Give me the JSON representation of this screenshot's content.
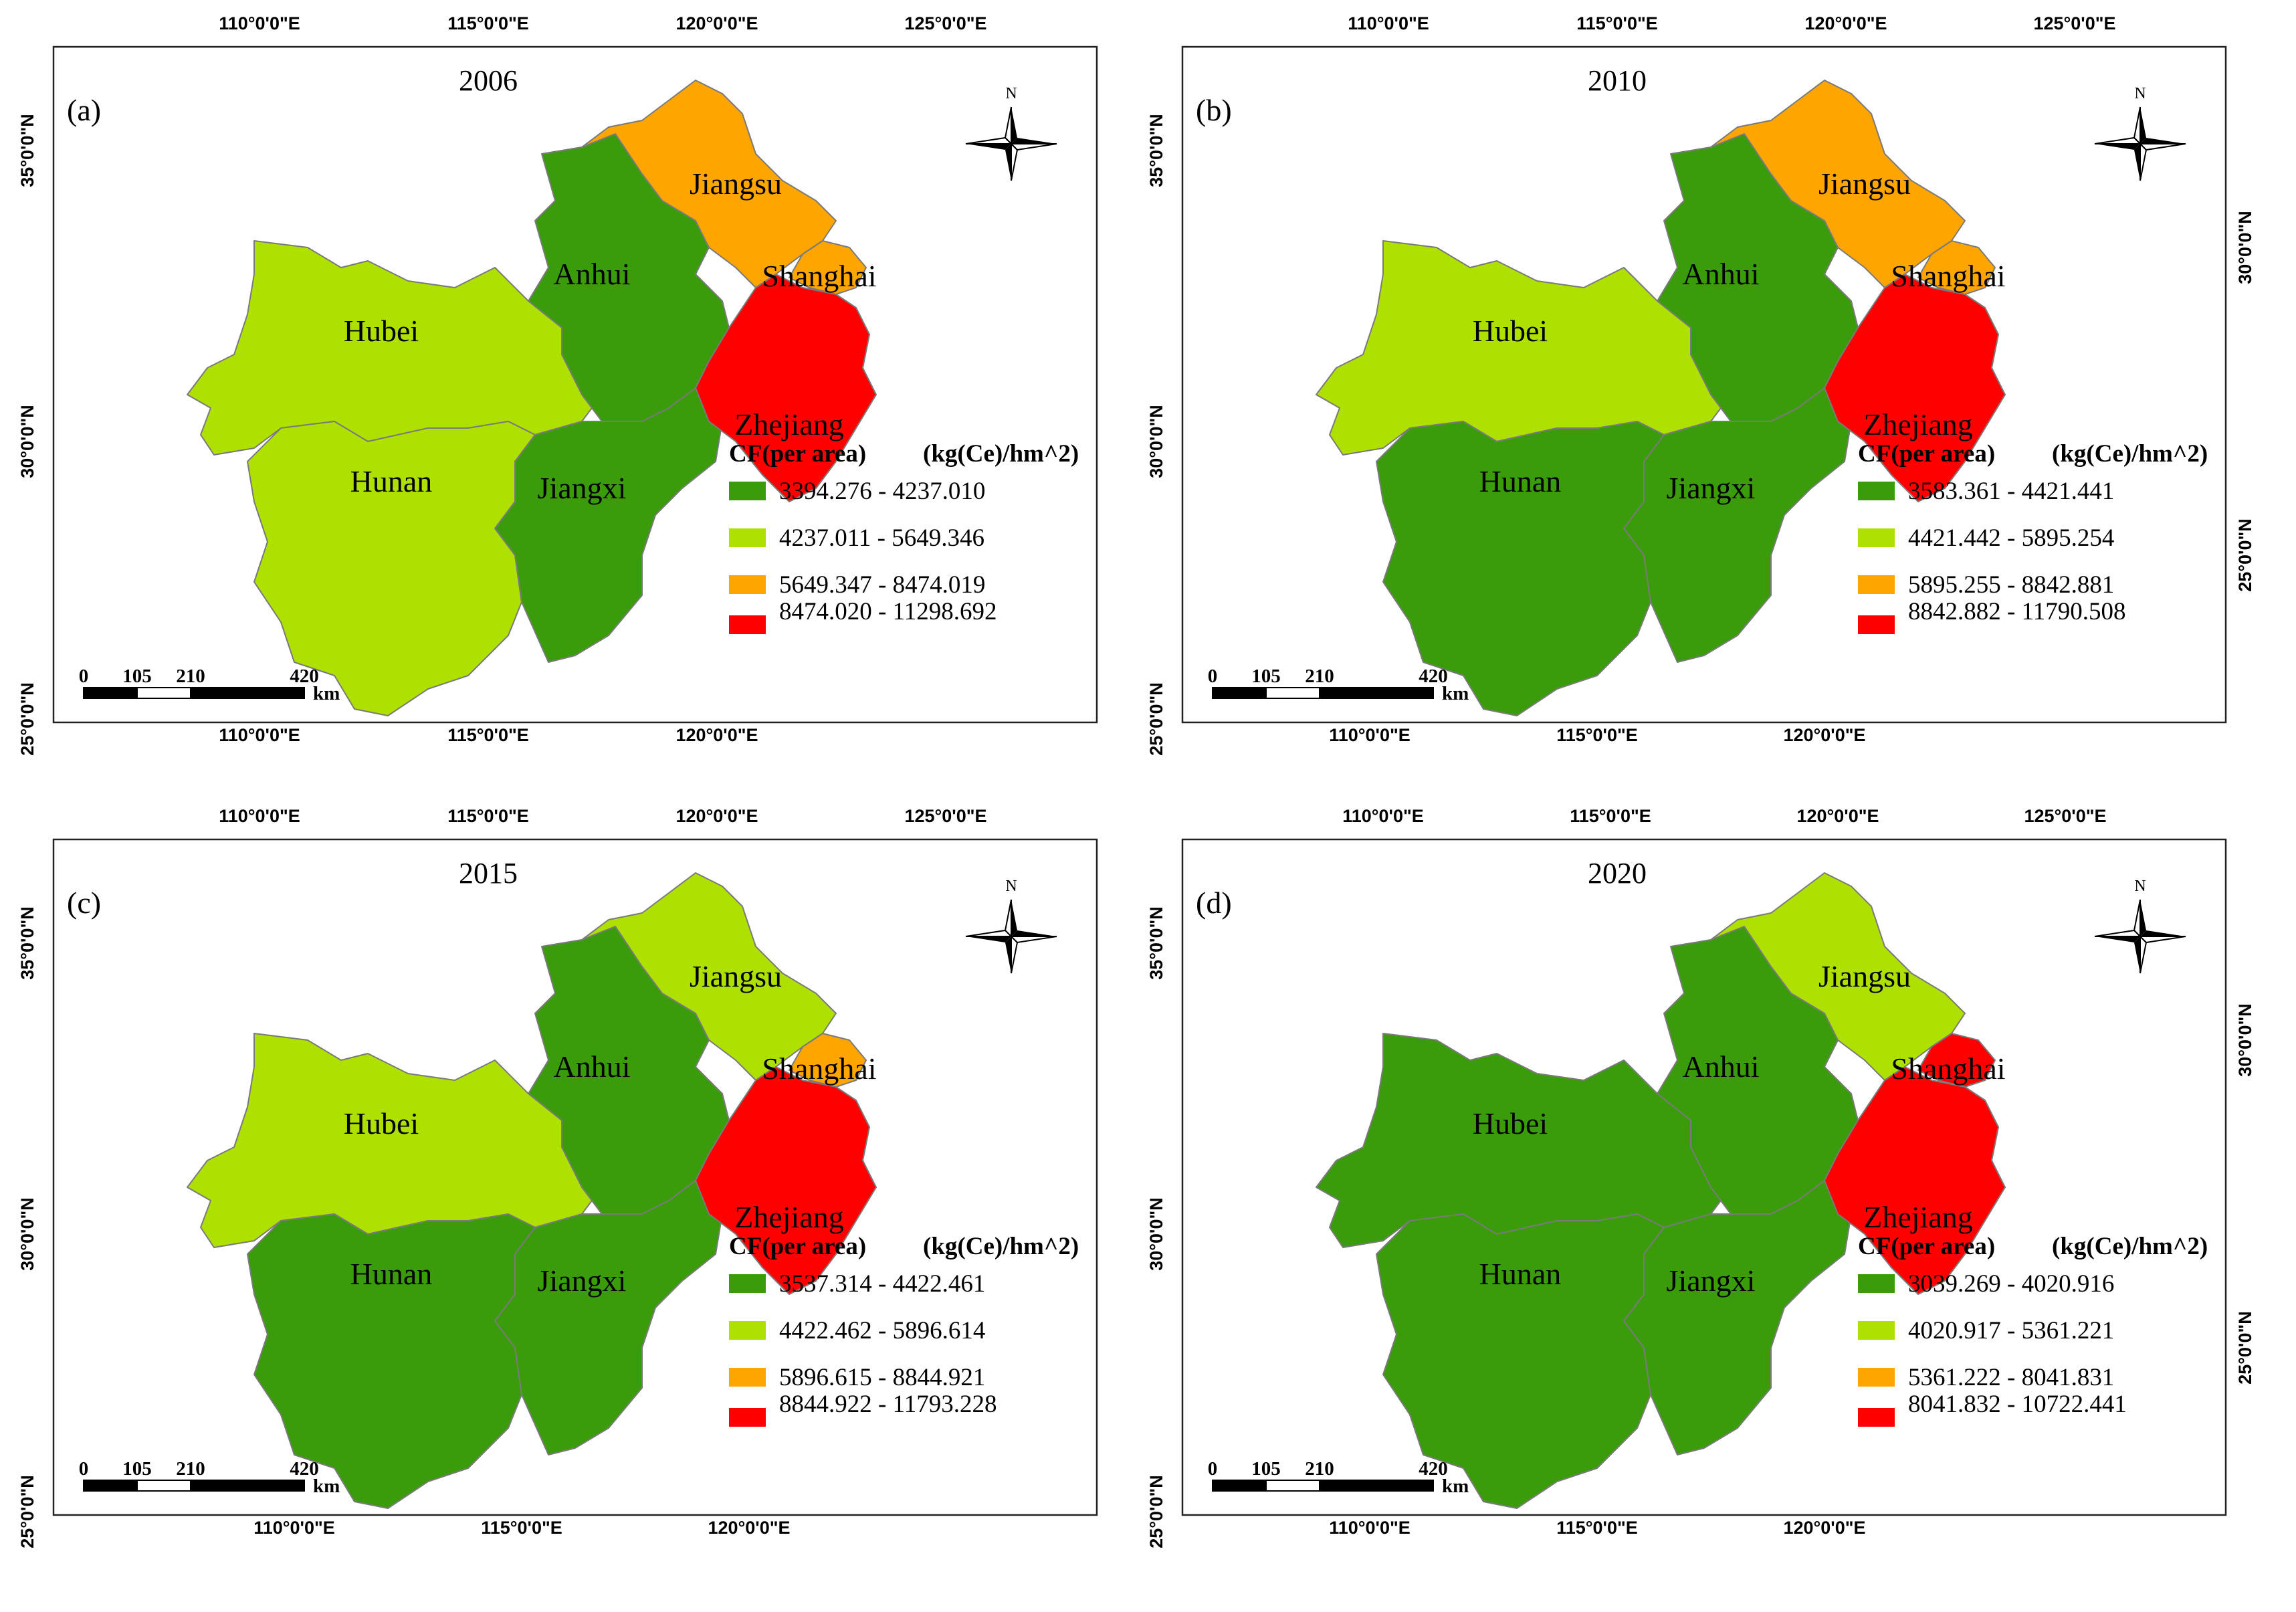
{
  "figure": {
    "colors": {
      "class1": "#3a9c0a",
      "class2": "#aee000",
      "class3": "#ffa500",
      "class4": "#ff0000"
    },
    "lon_labels": [
      "110°0'0\"E",
      "115°0'0\"E",
      "120°0'0\"E",
      "125°0'0\"E"
    ],
    "lat_labels": [
      "35°0'0\"N",
      "30°0'0\"N",
      "25°0'0\"N"
    ],
    "legend_title": "CF(per area)",
    "legend_unit": "(kg(Ce)/hm^2)",
    "scale_labels": [
      "0",
      "105",
      "210",
      "420"
    ],
    "scale_unit": "km",
    "north_label": "N"
  },
  "panels": [
    {
      "letter": "(a)",
      "year": "2006",
      "classes": {
        "Hubei": 2,
        "Hunan": 2,
        "Anhui": 1,
        "Jiangxi": 1,
        "Jiangsu": 3,
        "Shanghai": 3,
        "Zhejiang": 4
      },
      "legend": [
        "3394.276 - 4237.010",
        "4237.011 - 5649.346",
        "5649.347 - 8474.019",
        "8474.020 - 11298.692"
      ]
    },
    {
      "letter": "(b)",
      "year": "2010",
      "classes": {
        "Hubei": 2,
        "Hunan": 1,
        "Anhui": 1,
        "Jiangxi": 1,
        "Jiangsu": 3,
        "Shanghai": 3,
        "Zhejiang": 4
      },
      "legend": [
        "3583.361 - 4421.441",
        "4421.442 - 5895.254",
        "5895.255 - 8842.881",
        "8842.882 - 11790.508"
      ]
    },
    {
      "letter": "(c)",
      "year": "2015",
      "classes": {
        "Hubei": 2,
        "Hunan": 1,
        "Anhui": 1,
        "Jiangxi": 1,
        "Jiangsu": 2,
        "Shanghai": 3,
        "Zhejiang": 4
      },
      "legend": [
        "3537.314 - 4422.461",
        "4422.462 - 5896.614",
        "5896.615 - 8844.921",
        "8844.922 - 11793.228"
      ]
    },
    {
      "letter": "(d)",
      "year": "2020",
      "classes": {
        "Hubei": 1,
        "Hunan": 1,
        "Anhui": 1,
        "Jiangxi": 1,
        "Jiangsu": 2,
        "Shanghai": 4,
        "Zhejiang": 4
      },
      "legend": [
        "3039.269 - 4020.916",
        "4020.917 - 5361.221",
        "5361.222 - 8041.831",
        "8041.832 - 10722.441"
      ]
    }
  ],
  "provinces": [
    "Hubei",
    "Hunan",
    "Anhui",
    "Jiangxi",
    "Jiangsu",
    "Shanghai",
    "Zhejiang"
  ]
}
